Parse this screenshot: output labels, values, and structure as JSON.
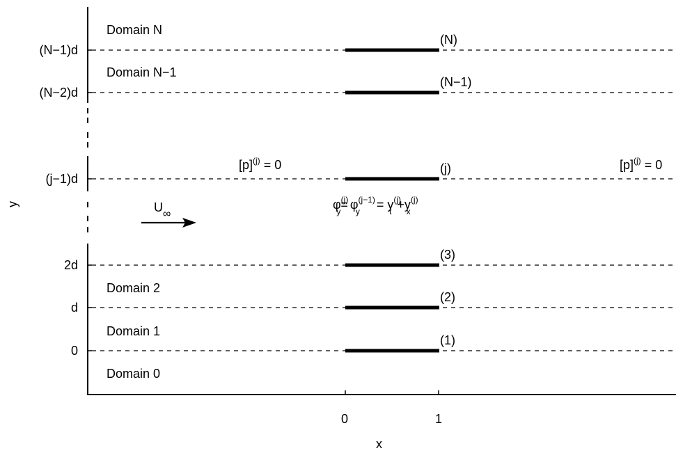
{
  "axes": {
    "x_label": "x",
    "y_label": "y",
    "x_ticks": [
      "0",
      "1"
    ]
  },
  "levels": [
    {
      "y_tick": "(N−1)d",
      "plate_label": "(N)"
    },
    {
      "y_tick": "(N−2)d",
      "plate_label": "(N−1)"
    },
    {
      "y_tick": "(j−1)d",
      "plate_label": "(j)"
    },
    {
      "y_tick": "2d",
      "plate_label": "(3)"
    },
    {
      "y_tick": "d",
      "plate_label": "(2)"
    },
    {
      "y_tick": "0",
      "plate_label": "(1)"
    }
  ],
  "domains": [
    "Domain N",
    "Domain N−1",
    "Domain 2",
    "Domain 1",
    "Domain 0"
  ],
  "pressure_condition": {
    "lhs": "[p]",
    "sup": "(j)",
    "rhs": " = 0"
  },
  "freestream": {
    "symbol": "U",
    "sub": "∞"
  },
  "boundary_condition": {
    "phi": "φ",
    "phi_sub": "y",
    "sup_j": "(j)",
    "sup_jm1": "(j−1)",
    "y_sym": "y",
    "sub_t": "t",
    "sub_x": "x",
    "eq": "=",
    "eq_spaced": " = ",
    "plus": "+"
  }
}
